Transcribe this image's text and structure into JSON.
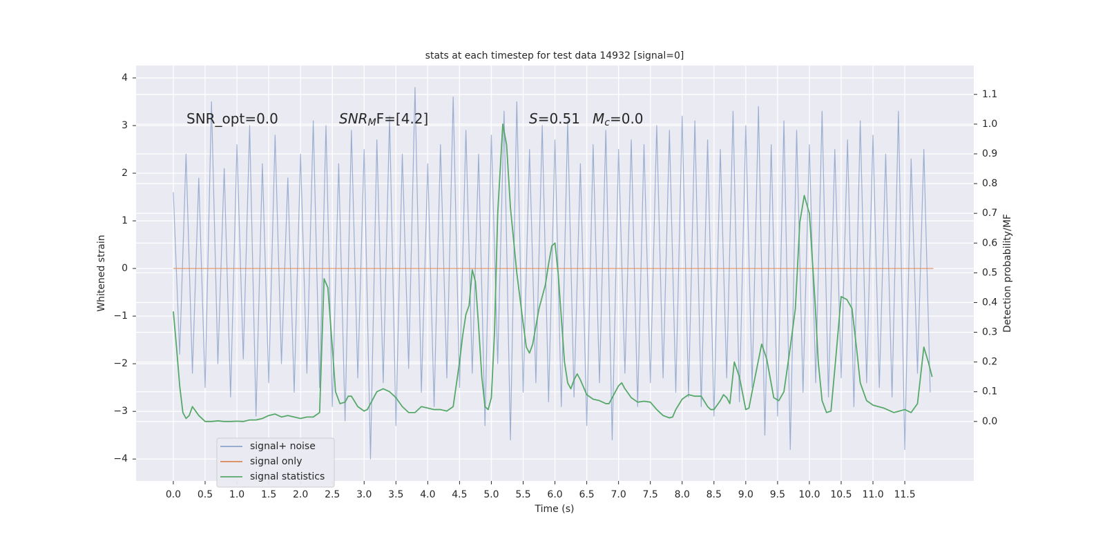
{
  "chart_data": {
    "type": "line",
    "title": "stats at each timestep for test data 14932 [signal=0]",
    "xlabel": "Time (s)",
    "ylabel": "Whitened strain",
    "y2label": "Detection probability/MF",
    "annotations": [
      {
        "text": "SNR_opt=0.0"
      },
      {
        "main": "SNR",
        "sub": "M",
        "rest": "F=[4.2]"
      },
      {
        "main": "S",
        "rest": "=0.51"
      },
      {
        "main": "M",
        "sub": "c",
        "rest": "=0.0"
      }
    ],
    "xlim": [
      -0.586,
      12.585
    ],
    "ylim": [
      -4.46,
      4.26
    ],
    "y2lim": [
      -0.2,
      1.197
    ],
    "xticks": [
      {
        "value": 0,
        "label": "0.0"
      },
      {
        "value": 0.5,
        "label": "0.5"
      },
      {
        "value": 1,
        "label": "1.0"
      },
      {
        "value": 1.5,
        "label": "1.5"
      },
      {
        "value": 2,
        "label": "2.0"
      },
      {
        "value": 2.5,
        "label": "2.5"
      },
      {
        "value": 3,
        "label": "3.0"
      },
      {
        "value": 3.5,
        "label": "3.5"
      },
      {
        "value": 4,
        "label": "4.0"
      },
      {
        "value": 4.5,
        "label": "4.5"
      },
      {
        "value": 5,
        "label": "5.0"
      },
      {
        "value": 5.5,
        "label": "5.5"
      },
      {
        "value": 6,
        "label": "6.0"
      },
      {
        "value": 6.5,
        "label": "6.5"
      },
      {
        "value": 7,
        "label": "7.0"
      },
      {
        "value": 7.5,
        "label": "7.5"
      },
      {
        "value": 8,
        "label": "8.0"
      },
      {
        "value": 8.5,
        "label": "8.5"
      },
      {
        "value": 9,
        "label": "9.0"
      },
      {
        "value": 9.5,
        "label": "9.5"
      },
      {
        "value": 10,
        "label": "10.0"
      },
      {
        "value": 10.5,
        "label": "10.5"
      },
      {
        "value": 11,
        "label": "11.0"
      },
      {
        "value": 11.5,
        "label": "11.5"
      }
    ],
    "yticks": [
      {
        "value": -4,
        "label": "−4"
      },
      {
        "value": -3,
        "label": "−3"
      },
      {
        "value": -2,
        "label": "−2"
      },
      {
        "value": -1,
        "label": "−1"
      },
      0,
      1,
      2,
      3,
      4
    ],
    "y2ticks": [
      {
        "value": 0,
        "label": "0.0"
      },
      {
        "value": 0.1,
        "label": "0.1"
      },
      {
        "value": 0.2,
        "label": "0.2"
      },
      {
        "value": 0.3,
        "label": "0.3"
      },
      {
        "value": 0.4,
        "label": "0.4"
      },
      {
        "value": 0.5,
        "label": "0.5"
      },
      {
        "value": 0.6,
        "label": "0.6"
      },
      {
        "value": 0.7,
        "label": "0.7"
      },
      {
        "value": 0.8,
        "label": "0.8"
      },
      {
        "value": 0.9,
        "label": "0.9"
      },
      {
        "value": 1,
        "label": "1.0"
      },
      {
        "value": 1.1,
        "label": "1.1"
      }
    ],
    "grid": true,
    "legend": "lower left",
    "series": [
      {
        "name": "signal+ noise",
        "color": "#4c72b0",
        "axis": "y",
        "x": [
          0,
          0.1,
          0.2,
          0.3,
          0.4,
          0.5,
          0.6,
          0.7,
          0.8,
          0.9,
          1,
          1.1,
          1.2,
          1.3,
          1.4,
          1.5,
          1.6,
          1.7,
          1.8,
          1.9,
          2,
          2.1,
          2.2,
          2.3,
          2.4,
          2.5,
          2.6,
          2.7,
          2.8,
          2.9,
          3,
          3.1,
          3.2,
          3.3,
          3.4,
          3.5,
          3.6,
          3.7,
          3.8,
          3.9,
          4,
          4.1,
          4.2,
          4.3,
          4.4,
          4.5,
          4.6,
          4.7,
          4.8,
          4.9,
          5,
          5.1,
          5.2,
          5.3,
          5.4,
          5.5,
          5.6,
          5.7,
          5.8,
          5.9,
          6,
          6.1,
          6.2,
          6.3,
          6.4,
          6.5,
          6.6,
          6.7,
          6.8,
          6.9,
          7,
          7.1,
          7.2,
          7.3,
          7.4,
          7.5,
          7.6,
          7.7,
          7.8,
          7.9,
          8,
          8.1,
          8.2,
          8.3,
          8.4,
          8.5,
          8.6,
          8.7,
          8.8,
          8.9,
          9,
          9.1,
          9.2,
          9.3,
          9.4,
          9.5,
          9.6,
          9.7,
          9.8,
          9.9,
          10,
          10.1,
          10.2,
          10.3,
          10.4,
          10.5,
          10.6,
          10.7,
          10.8,
          10.9,
          11,
          11.1,
          11.2,
          11.3,
          11.4,
          11.5,
          11.6,
          11.7,
          11.8,
          11.9
        ],
        "values": [
          1.6,
          -1.8,
          2.4,
          -2.2,
          1.9,
          -2.5,
          3.5,
          -2.0,
          2.1,
          -2.7,
          2.6,
          -1.9,
          3.0,
          -3.1,
          2.2,
          -2.4,
          2.8,
          -2.0,
          1.9,
          -2.6,
          2.4,
          -2.2,
          3.1,
          -2.5,
          3.0,
          -2.9,
          2.2,
          -3.2,
          2.9,
          -2.3,
          2.5,
          -4.0,
          2.7,
          -2.4,
          3.2,
          -3.3,
          2.4,
          -2.1,
          3.8,
          -2.6,
          2.2,
          -2.9,
          2.6,
          -2.3,
          3.6,
          -2.5,
          2.9,
          -2.2,
          2.4,
          -3.3,
          2.8,
          -2.0,
          3.3,
          -3.6,
          3.5,
          -2.6,
          2.5,
          -2.4,
          3.0,
          -2.8,
          2.7,
          -2.9,
          3.1,
          -2.7,
          2.2,
          -3.3,
          2.6,
          -2.4,
          2.9,
          -3.6,
          2.5,
          -2.2,
          2.7,
          -2.9,
          2.6,
          -2.4,
          3.0,
          -2.3,
          2.9,
          -2.6,
          3.2,
          -2.7,
          3.1,
          -2.9,
          2.7,
          -3.1,
          2.5,
          -2.3,
          3.3,
          -2.8,
          3.0,
          -2.5,
          3.4,
          -3.5,
          2.6,
          -3.1,
          3.1,
          -3.8,
          2.9,
          -2.6,
          2.6,
          -2.4,
          3.3,
          -2.7,
          2.5,
          -2.3,
          2.7,
          -2.9,
          3.1,
          -2.4,
          2.8,
          -2.5,
          2.4,
          -2.7,
          3.3,
          -3.8,
          2.3,
          -2.2,
          2.5,
          -2.6
        ]
      },
      {
        "name": "signal only",
        "color": "#dd8452",
        "axis": "y",
        "x": [
          0,
          11.95
        ],
        "values": [
          0,
          0
        ]
      },
      {
        "name": "signal statistics",
        "color": "#55a868",
        "axis": "y2",
        "x": [
          0,
          0.05,
          0.1,
          0.15,
          0.2,
          0.25,
          0.3,
          0.4,
          0.5,
          0.6,
          0.7,
          0.8,
          0.9,
          1,
          1.1,
          1.2,
          1.3,
          1.4,
          1.5,
          1.6,
          1.7,
          1.8,
          1.9,
          2,
          2.1,
          2.2,
          2.3,
          2.37,
          2.43,
          2.5,
          2.55,
          2.62,
          2.7,
          2.75,
          2.8,
          2.9,
          3,
          3.05,
          3.1,
          3.2,
          3.3,
          3.4,
          3.5,
          3.6,
          3.7,
          3.8,
          3.9,
          4,
          4.1,
          4.2,
          4.3,
          4.4,
          4.5,
          4.55,
          4.6,
          4.65,
          4.7,
          4.75,
          4.8,
          4.85,
          4.9,
          4.95,
          5,
          5.05,
          5.1,
          5.18,
          5.24,
          5.3,
          5.4,
          5.5,
          5.55,
          5.6,
          5.65,
          5.75,
          5.85,
          5.9,
          5.95,
          6,
          6.05,
          6.1,
          6.15,
          6.2,
          6.25,
          6.3,
          6.35,
          6.4,
          6.5,
          6.6,
          6.7,
          6.8,
          6.85,
          6.9,
          7,
          7.05,
          7.1,
          7.2,
          7.3,
          7.4,
          7.5,
          7.6,
          7.7,
          7.8,
          7.85,
          7.9,
          8,
          8.1,
          8.2,
          8.3,
          8.4,
          8.45,
          8.5,
          8.6,
          8.65,
          8.7,
          8.75,
          8.82,
          8.9,
          9,
          9.05,
          9.1,
          9.25,
          9.33,
          9.44,
          9.52,
          9.6,
          9.7,
          9.78,
          9.85,
          9.92,
          10,
          10.09,
          10.14,
          10.2,
          10.27,
          10.34,
          10.41,
          10.5,
          10.59,
          10.67,
          10.74,
          10.8,
          10.9,
          11,
          11.17,
          11.33,
          11.5,
          11.6,
          11.7,
          11.8,
          11.87,
          11.93
        ],
        "values": [
          0.37,
          0.25,
          0.12,
          0.03,
          0.01,
          0.02,
          0.05,
          0.02,
          0,
          0,
          0.002,
          0,
          0,
          0.001,
          0,
          0.005,
          0.005,
          0.01,
          0.02,
          0.025,
          0.015,
          0.02,
          0.015,
          0.01,
          0.015,
          0.015,
          0.03,
          0.48,
          0.45,
          0.25,
          0.1,
          0.06,
          0.065,
          0.085,
          0.085,
          0.05,
          0.035,
          0.04,
          0.06,
          0.1,
          0.11,
          0.1,
          0.08,
          0.05,
          0.03,
          0.03,
          0.05,
          0.045,
          0.04,
          0.04,
          0.035,
          0.05,
          0.2,
          0.29,
          0.36,
          0.39,
          0.51,
          0.47,
          0.32,
          0.15,
          0.05,
          0.04,
          0.08,
          0.3,
          0.7,
          1.0,
          0.93,
          0.72,
          0.5,
          0.33,
          0.25,
          0.23,
          0.26,
          0.38,
          0.46,
          0.53,
          0.59,
          0.6,
          0.5,
          0.35,
          0.2,
          0.13,
          0.11,
          0.14,
          0.16,
          0.14,
          0.09,
          0.075,
          0.07,
          0.06,
          0.06,
          0.08,
          0.12,
          0.13,
          0.11,
          0.08,
          0.065,
          0.068,
          0.065,
          0.04,
          0.02,
          0.012,
          0.015,
          0.04,
          0.075,
          0.09,
          0.085,
          0.085,
          0.05,
          0.04,
          0.04,
          0.07,
          0.09,
          0.08,
          0.06,
          0.2,
          0.15,
          0.04,
          0.045,
          0.1,
          0.26,
          0.21,
          0.08,
          0.07,
          0.1,
          0.25,
          0.38,
          0.67,
          0.76,
          0.7,
          0.4,
          0.2,
          0.07,
          0.03,
          0.035,
          0.2,
          0.42,
          0.41,
          0.38,
          0.25,
          0.13,
          0.07,
          0.055,
          0.045,
          0.03,
          0.04,
          0.03,
          0.06,
          0.25,
          0.2,
          0.15
        ]
      }
    ]
  }
}
